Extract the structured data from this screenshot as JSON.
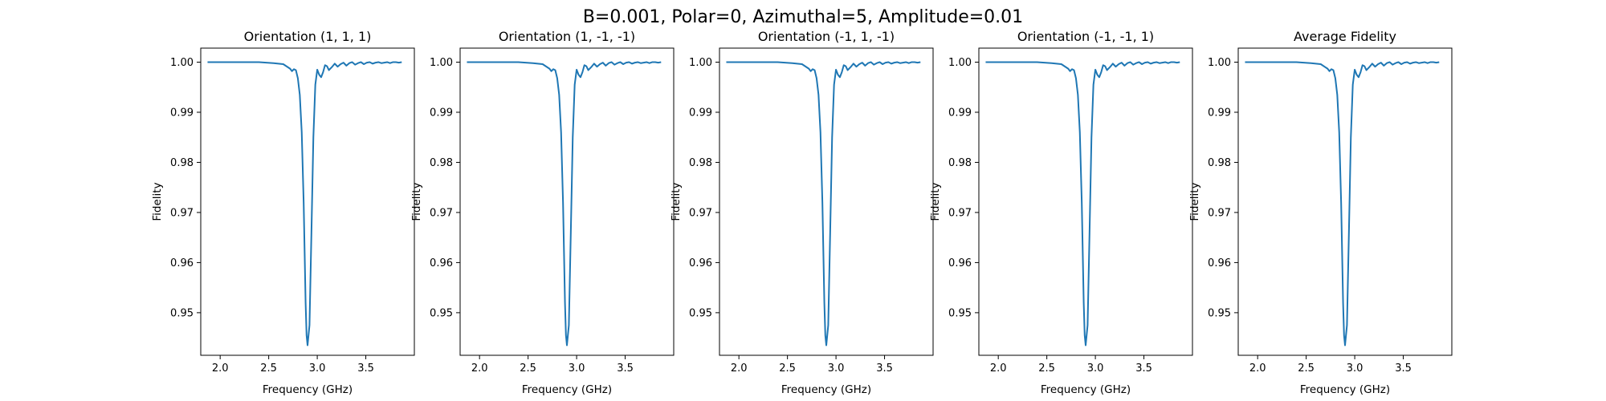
{
  "figure": {
    "suptitle": "B=0.001, Polar=0, Azimuthal=5, Amplitude=0.01"
  },
  "chart_data": [
    {
      "type": "line",
      "title": "Orientation (1, 1, 1)",
      "xlabel": "Frequency (GHz)",
      "ylabel": "Fidelity",
      "xlim": [
        1.8,
        4.0
      ],
      "ylim": [
        0.9415,
        1.0028
      ],
      "xticks": [
        "2.0",
        "2.5",
        "3.0",
        "3.5"
      ],
      "yticks": [
        "0.95",
        "0.96",
        "0.97",
        "0.98",
        "0.99",
        "1.00"
      ],
      "grid": false,
      "color": "#1f77b4",
      "series": [
        {
          "x": [
            1.87,
            2.0,
            2.2,
            2.4,
            2.55,
            2.65,
            2.72,
            2.74,
            2.76,
            2.78,
            2.8,
            2.82,
            2.84,
            2.86,
            2.87,
            2.88,
            2.89,
            2.9,
            2.92,
            2.94,
            2.96,
            2.98,
            3.0,
            3.02,
            3.04,
            3.06,
            3.08,
            3.1,
            3.12,
            3.15,
            3.18,
            3.21,
            3.24,
            3.27,
            3.3,
            3.33,
            3.36,
            3.39,
            3.42,
            3.45,
            3.48,
            3.51,
            3.54,
            3.57,
            3.6,
            3.63,
            3.66,
            3.69,
            3.72,
            3.75,
            3.78,
            3.81,
            3.84,
            3.87
          ],
          "y": [
            1.0,
            1.0,
            1.0,
            1.0,
            0.9998,
            0.9996,
            0.9987,
            0.9982,
            0.9986,
            0.9984,
            0.9968,
            0.9935,
            0.986,
            0.972,
            0.962,
            0.952,
            0.9455,
            0.9435,
            0.9475,
            0.966,
            0.985,
            0.9955,
            0.9985,
            0.9975,
            0.997,
            0.998,
            0.9994,
            0.9992,
            0.9984,
            0.999,
            0.9997,
            0.9991,
            0.9996,
            0.9999,
            0.9993,
            0.9998,
            1.0,
            0.9995,
            0.9998,
            1.0,
            0.9996,
            0.9999,
            1.0,
            0.9997,
            0.9999,
            1.0,
            0.9998,
            0.9999,
            1.0,
            0.9998,
            1.0,
            1.0,
            0.9999,
            1.0
          ]
        }
      ]
    },
    {
      "type": "line",
      "title": "Orientation (1, -1, -1)",
      "xlabel": "Frequency (GHz)",
      "ylabel": "Fidelity",
      "xlim": [
        1.8,
        4.0
      ],
      "ylim": [
        0.9415,
        1.0028
      ],
      "xticks": [
        "2.0",
        "2.5",
        "3.0",
        "3.5"
      ],
      "yticks": [
        "0.95",
        "0.96",
        "0.97",
        "0.98",
        "0.99",
        "1.00"
      ],
      "grid": false,
      "color": "#1f77b4",
      "series": [
        {
          "x": [
            1.87,
            2.0,
            2.2,
            2.4,
            2.55,
            2.65,
            2.72,
            2.74,
            2.76,
            2.78,
            2.8,
            2.82,
            2.84,
            2.86,
            2.87,
            2.88,
            2.89,
            2.9,
            2.92,
            2.94,
            2.96,
            2.98,
            3.0,
            3.02,
            3.04,
            3.06,
            3.08,
            3.1,
            3.12,
            3.15,
            3.18,
            3.21,
            3.24,
            3.27,
            3.3,
            3.33,
            3.36,
            3.39,
            3.42,
            3.45,
            3.48,
            3.51,
            3.54,
            3.57,
            3.6,
            3.63,
            3.66,
            3.69,
            3.72,
            3.75,
            3.78,
            3.81,
            3.84,
            3.87
          ],
          "y": [
            1.0,
            1.0,
            1.0,
            1.0,
            0.9998,
            0.9996,
            0.9987,
            0.9982,
            0.9986,
            0.9984,
            0.9968,
            0.9935,
            0.986,
            0.972,
            0.962,
            0.952,
            0.9455,
            0.9435,
            0.9475,
            0.966,
            0.985,
            0.9955,
            0.9985,
            0.9975,
            0.997,
            0.998,
            0.9994,
            0.9992,
            0.9984,
            0.999,
            0.9997,
            0.9991,
            0.9996,
            0.9999,
            0.9993,
            0.9998,
            1.0,
            0.9995,
            0.9998,
            1.0,
            0.9996,
            0.9999,
            1.0,
            0.9997,
            0.9999,
            1.0,
            0.9998,
            0.9999,
            1.0,
            0.9998,
            1.0,
            1.0,
            0.9999,
            1.0
          ]
        }
      ]
    },
    {
      "type": "line",
      "title": "Orientation (-1, 1, -1)",
      "xlabel": "Frequency (GHz)",
      "ylabel": "Fidelity",
      "xlim": [
        1.8,
        4.0
      ],
      "ylim": [
        0.9415,
        1.0028
      ],
      "xticks": [
        "2.0",
        "2.5",
        "3.0",
        "3.5"
      ],
      "yticks": [
        "0.95",
        "0.96",
        "0.97",
        "0.98",
        "0.99",
        "1.00"
      ],
      "grid": false,
      "color": "#1f77b4",
      "series": [
        {
          "x": [
            1.87,
            2.0,
            2.2,
            2.4,
            2.55,
            2.65,
            2.72,
            2.74,
            2.76,
            2.78,
            2.8,
            2.82,
            2.84,
            2.86,
            2.87,
            2.88,
            2.89,
            2.9,
            2.92,
            2.94,
            2.96,
            2.98,
            3.0,
            3.02,
            3.04,
            3.06,
            3.08,
            3.1,
            3.12,
            3.15,
            3.18,
            3.21,
            3.24,
            3.27,
            3.3,
            3.33,
            3.36,
            3.39,
            3.42,
            3.45,
            3.48,
            3.51,
            3.54,
            3.57,
            3.6,
            3.63,
            3.66,
            3.69,
            3.72,
            3.75,
            3.78,
            3.81,
            3.84,
            3.87
          ],
          "y": [
            1.0,
            1.0,
            1.0,
            1.0,
            0.9998,
            0.9996,
            0.9987,
            0.9982,
            0.9986,
            0.9984,
            0.9968,
            0.9935,
            0.986,
            0.972,
            0.962,
            0.952,
            0.9455,
            0.9435,
            0.9475,
            0.966,
            0.985,
            0.9955,
            0.9985,
            0.9975,
            0.997,
            0.998,
            0.9994,
            0.9992,
            0.9984,
            0.999,
            0.9997,
            0.9991,
            0.9996,
            0.9999,
            0.9993,
            0.9998,
            1.0,
            0.9995,
            0.9998,
            1.0,
            0.9996,
            0.9999,
            1.0,
            0.9997,
            0.9999,
            1.0,
            0.9998,
            0.9999,
            1.0,
            0.9998,
            1.0,
            1.0,
            0.9999,
            1.0
          ]
        }
      ]
    },
    {
      "type": "line",
      "title": "Orientation (-1, -1, 1)",
      "xlabel": "Frequency (GHz)",
      "ylabel": "Fidelity",
      "xlim": [
        1.8,
        4.0
      ],
      "ylim": [
        0.9415,
        1.0028
      ],
      "xticks": [
        "2.0",
        "2.5",
        "3.0",
        "3.5"
      ],
      "yticks": [
        "0.95",
        "0.96",
        "0.97",
        "0.98",
        "0.99",
        "1.00"
      ],
      "grid": false,
      "color": "#1f77b4",
      "series": [
        {
          "x": [
            1.87,
            2.0,
            2.2,
            2.4,
            2.55,
            2.65,
            2.72,
            2.74,
            2.76,
            2.78,
            2.8,
            2.82,
            2.84,
            2.86,
            2.87,
            2.88,
            2.89,
            2.9,
            2.92,
            2.94,
            2.96,
            2.98,
            3.0,
            3.02,
            3.04,
            3.06,
            3.08,
            3.1,
            3.12,
            3.15,
            3.18,
            3.21,
            3.24,
            3.27,
            3.3,
            3.33,
            3.36,
            3.39,
            3.42,
            3.45,
            3.48,
            3.51,
            3.54,
            3.57,
            3.6,
            3.63,
            3.66,
            3.69,
            3.72,
            3.75,
            3.78,
            3.81,
            3.84,
            3.87
          ],
          "y": [
            1.0,
            1.0,
            1.0,
            1.0,
            0.9998,
            0.9996,
            0.9987,
            0.9982,
            0.9986,
            0.9984,
            0.9968,
            0.9935,
            0.986,
            0.972,
            0.962,
            0.952,
            0.9455,
            0.9435,
            0.9475,
            0.966,
            0.985,
            0.9955,
            0.9985,
            0.9975,
            0.997,
            0.998,
            0.9994,
            0.9992,
            0.9984,
            0.999,
            0.9997,
            0.9991,
            0.9996,
            0.9999,
            0.9993,
            0.9998,
            1.0,
            0.9995,
            0.9998,
            1.0,
            0.9996,
            0.9999,
            1.0,
            0.9997,
            0.9999,
            1.0,
            0.9998,
            0.9999,
            1.0,
            0.9998,
            1.0,
            1.0,
            0.9999,
            1.0
          ]
        }
      ]
    },
    {
      "type": "line",
      "title": "Average Fidelity",
      "xlabel": "Frequency (GHz)",
      "ylabel": "Fidelity",
      "xlim": [
        1.8,
        4.0
      ],
      "ylim": [
        0.9415,
        1.0028
      ],
      "xticks": [
        "2.0",
        "2.5",
        "3.0",
        "3.5"
      ],
      "yticks": [
        "0.95",
        "0.96",
        "0.97",
        "0.98",
        "0.99",
        "1.00"
      ],
      "grid": false,
      "color": "#1f77b4",
      "series": [
        {
          "x": [
            1.87,
            2.0,
            2.2,
            2.4,
            2.55,
            2.65,
            2.72,
            2.74,
            2.76,
            2.78,
            2.8,
            2.82,
            2.84,
            2.86,
            2.87,
            2.88,
            2.89,
            2.9,
            2.92,
            2.94,
            2.96,
            2.98,
            3.0,
            3.02,
            3.04,
            3.06,
            3.08,
            3.1,
            3.12,
            3.15,
            3.18,
            3.21,
            3.24,
            3.27,
            3.3,
            3.33,
            3.36,
            3.39,
            3.42,
            3.45,
            3.48,
            3.51,
            3.54,
            3.57,
            3.6,
            3.63,
            3.66,
            3.69,
            3.72,
            3.75,
            3.78,
            3.81,
            3.84,
            3.87
          ],
          "y": [
            1.0,
            1.0,
            1.0,
            1.0,
            0.9998,
            0.9996,
            0.9987,
            0.9982,
            0.9986,
            0.9984,
            0.9968,
            0.9935,
            0.986,
            0.972,
            0.962,
            0.952,
            0.9455,
            0.9435,
            0.9475,
            0.966,
            0.985,
            0.9955,
            0.9985,
            0.9975,
            0.997,
            0.998,
            0.9994,
            0.9992,
            0.9984,
            0.999,
            0.9997,
            0.9991,
            0.9996,
            0.9999,
            0.9993,
            0.9998,
            1.0,
            0.9995,
            0.9998,
            1.0,
            0.9996,
            0.9999,
            1.0,
            0.9997,
            0.9999,
            1.0,
            0.9998,
            0.9999,
            1.0,
            0.9998,
            1.0,
            1.0,
            0.9999,
            1.0
          ]
        }
      ]
    }
  ]
}
